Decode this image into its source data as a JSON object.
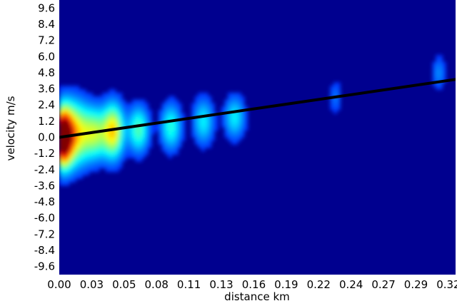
{
  "chart_data": {
    "type": "heatmap",
    "title": "",
    "xlabel": "distance km",
    "ylabel": "velocity m/s",
    "xlim": [
      0.0,
      0.33
    ],
    "ylim": [
      -10.2,
      10.2
    ],
    "x_ticks": [
      {
        "value": 0.0,
        "label": "0.00"
      },
      {
        "value": 0.027,
        "label": "0.03"
      },
      {
        "value": 0.054,
        "label": "0.05"
      },
      {
        "value": 0.081,
        "label": "0.08"
      },
      {
        "value": 0.108,
        "label": "0.11"
      },
      {
        "value": 0.135,
        "label": "0.13"
      },
      {
        "value": 0.162,
        "label": "0.16"
      },
      {
        "value": 0.189,
        "label": "0.19"
      },
      {
        "value": 0.216,
        "label": "0.22"
      },
      {
        "value": 0.243,
        "label": "0.24"
      },
      {
        "value": 0.27,
        "label": "0.27"
      },
      {
        "value": 0.297,
        "label": "0.29"
      },
      {
        "value": 0.324,
        "label": "0.32"
      }
    ],
    "y_ticks": [
      {
        "value": 9.6,
        "label": "9.6"
      },
      {
        "value": 8.4,
        "label": "8.4"
      },
      {
        "value": 7.2,
        "label": "7.2"
      },
      {
        "value": 6.0,
        "label": "6.0"
      },
      {
        "value": 4.8,
        "label": "4.8"
      },
      {
        "value": 3.6,
        "label": "3.6"
      },
      {
        "value": 2.4,
        "label": "2.4"
      },
      {
        "value": 1.2,
        "label": "1.2"
      },
      {
        "value": 0.0,
        "label": "0.0"
      },
      {
        "value": -1.2,
        "label": "-1.2"
      },
      {
        "value": -2.4,
        "label": "-2.4"
      },
      {
        "value": -3.6,
        "label": "-3.6"
      },
      {
        "value": -4.8,
        "label": "-4.8"
      },
      {
        "value": -6.0,
        "label": "-6.0"
      },
      {
        "value": -7.2,
        "label": "-7.2"
      },
      {
        "value": -8.4,
        "label": "-8.4"
      },
      {
        "value": -9.6,
        "label": "-9.6"
      }
    ],
    "colormap": "jet",
    "background_color": "#00008f",
    "line_color": "#000000",
    "grid": false,
    "legend": "none",
    "intensity_blobs": [
      {
        "x": 0.003,
        "y": 0.0,
        "sx": 0.005,
        "sy": 1.4,
        "value": 1.0
      },
      {
        "x": 0.012,
        "y": 0.3,
        "sx": 0.009,
        "sy": 1.6,
        "value": 0.62
      },
      {
        "x": 0.03,
        "y": 0.3,
        "sx": 0.007,
        "sy": 1.3,
        "value": 0.42
      },
      {
        "x": 0.045,
        "y": 0.5,
        "sx": 0.006,
        "sy": 1.4,
        "value": 0.6
      },
      {
        "x": 0.066,
        "y": 0.6,
        "sx": 0.006,
        "sy": 1.2,
        "value": 0.38
      },
      {
        "x": 0.093,
        "y": 0.8,
        "sx": 0.006,
        "sy": 1.2,
        "value": 0.33
      },
      {
        "x": 0.12,
        "y": 1.2,
        "sx": 0.006,
        "sy": 1.2,
        "value": 0.28
      },
      {
        "x": 0.146,
        "y": 1.5,
        "sx": 0.006,
        "sy": 1.1,
        "value": 0.28
      },
      {
        "x": 0.23,
        "y": 3.0,
        "sx": 0.004,
        "sy": 0.9,
        "value": 0.13
      },
      {
        "x": 0.316,
        "y": 4.8,
        "sx": 0.004,
        "sy": 0.9,
        "value": 0.16
      }
    ],
    "fit_line": {
      "x": [
        0.0,
        0.33
      ],
      "y": [
        0.0,
        4.3
      ]
    }
  }
}
